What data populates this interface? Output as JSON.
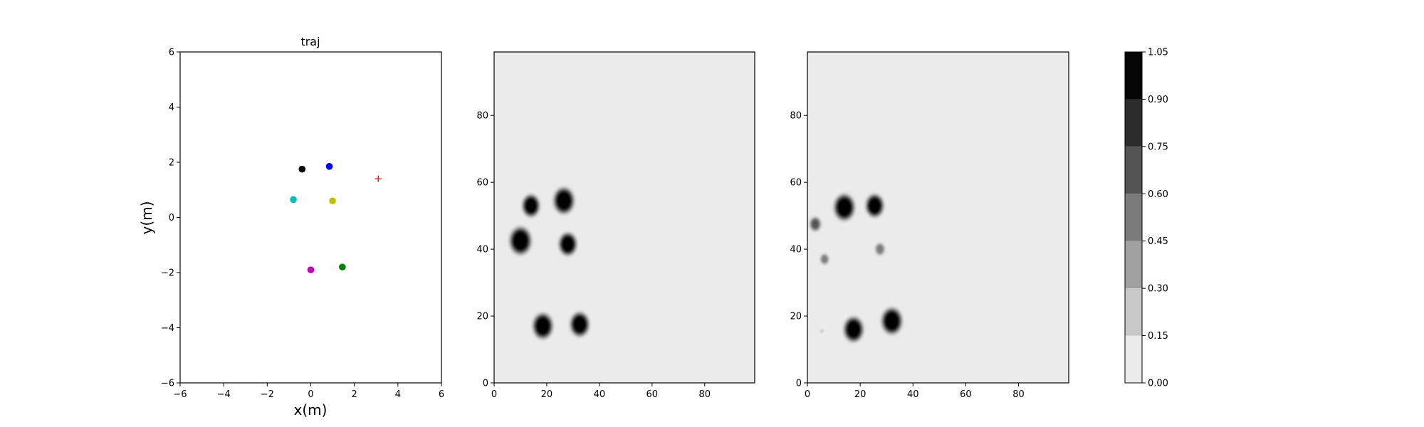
{
  "chart_data": [
    {
      "type": "scatter",
      "title": "traj",
      "xlabel": "x(m)",
      "ylabel": "y(m)",
      "xlim": [
        -6,
        6
      ],
      "ylim": [
        -6,
        6
      ],
      "xticks": [
        "−6",
        "−4",
        "−2",
        "0",
        "2",
        "4",
        "6"
      ],
      "yticks": [
        "−6",
        "−4",
        "−2",
        "0",
        "2",
        "4",
        "6"
      ],
      "grid": false,
      "points": [
        {
          "x": -0.4,
          "y": 1.75,
          "color": "#000000",
          "marker": "circle"
        },
        {
          "x": 0.85,
          "y": 1.85,
          "color": "#0000ff",
          "marker": "circle"
        },
        {
          "x": -0.8,
          "y": 0.65,
          "color": "#00bfbf",
          "marker": "circle"
        },
        {
          "x": 1.0,
          "y": 0.6,
          "color": "#bfbf00",
          "marker": "circle"
        },
        {
          "x": 0.0,
          "y": -1.9,
          "color": "#bf00bf",
          "marker": "circle"
        },
        {
          "x": 1.45,
          "y": -1.8,
          "color": "#008000",
          "marker": "circle"
        },
        {
          "x": 3.1,
          "y": 1.4,
          "color": "#ff0000",
          "marker": "plus"
        }
      ]
    },
    {
      "type": "heatmap",
      "xlim": [
        0,
        99
      ],
      "ylim": [
        0,
        99
      ],
      "xticks": [
        "0",
        "20",
        "40",
        "60",
        "80"
      ],
      "yticks": [
        "0",
        "20",
        "40",
        "60",
        "80"
      ],
      "background_value": 0.05,
      "blobs": [
        {
          "x": 14,
          "y": 53,
          "r": 3.2,
          "value": 1.0
        },
        {
          "x": 26.5,
          "y": 54.5,
          "r": 3.8,
          "value": 1.0
        },
        {
          "x": 10,
          "y": 42.5,
          "r": 4.0,
          "value": 1.0
        },
        {
          "x": 28,
          "y": 41.5,
          "r": 3.3,
          "value": 1.0
        },
        {
          "x": 18.5,
          "y": 17,
          "r": 3.7,
          "value": 1.0
        },
        {
          "x": 32.5,
          "y": 17.5,
          "r": 3.5,
          "value": 1.0
        }
      ]
    },
    {
      "type": "heatmap",
      "xlim": [
        0,
        99
      ],
      "ylim": [
        0,
        99
      ],
      "xticks": [
        "0",
        "20",
        "40",
        "60",
        "80"
      ],
      "yticks": [
        "0",
        "20",
        "40",
        "60",
        "80"
      ],
      "background_value": 0.05,
      "blobs": [
        {
          "x": 14,
          "y": 52.5,
          "r": 3.8,
          "value": 1.0
        },
        {
          "x": 25.5,
          "y": 53,
          "r": 3.3,
          "value": 1.0
        },
        {
          "x": 3,
          "y": 47.5,
          "r": 2.0,
          "value": 0.7
        },
        {
          "x": 6.5,
          "y": 37,
          "r": 1.6,
          "value": 0.55
        },
        {
          "x": 27.5,
          "y": 40,
          "r": 1.8,
          "value": 0.55
        },
        {
          "x": 17.5,
          "y": 16,
          "r": 3.6,
          "value": 1.0
        },
        {
          "x": 32,
          "y": 18.5,
          "r": 3.8,
          "value": 1.0
        },
        {
          "x": 5.5,
          "y": 15.5,
          "r": 0.5,
          "value": 0.35
        }
      ]
    }
  ],
  "colorbar": {
    "levels": [
      0.0,
      0.15,
      0.3,
      0.45,
      0.6,
      0.75,
      0.9,
      1.05
    ],
    "tick_labels": [
      "0.00",
      "0.15",
      "0.30",
      "0.45",
      "0.60",
      "0.75",
      "0.90",
      "1.05"
    ],
    "colors": [
      "#ebebeb",
      "#c8c8c8",
      "#a1a1a1",
      "#7b7b7b",
      "#545454",
      "#2c2c2c",
      "#050505"
    ]
  }
}
